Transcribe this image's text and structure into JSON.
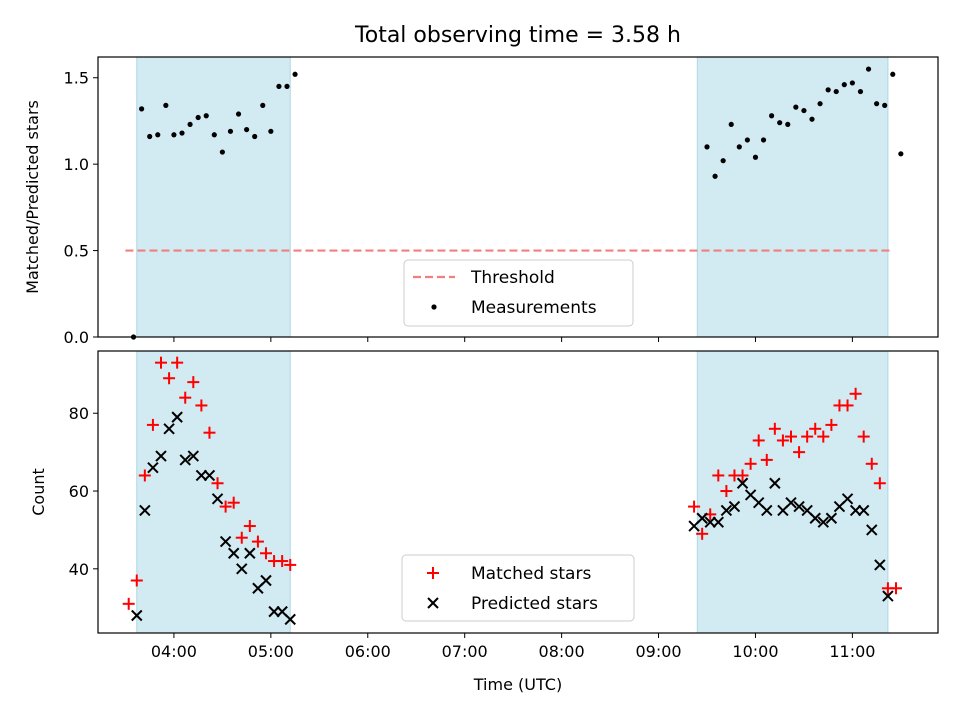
{
  "chart_data": [
    {
      "type": "scatter",
      "title": "Total observing time = 3.58 h",
      "xlabel": "",
      "ylabel": "Matched/Predicted stars",
      "xlim": [
        "03:13",
        "11:53"
      ],
      "ylim": [
        0,
        1.62
      ],
      "yticks": [
        "0.0",
        "0.5",
        "1.0",
        "1.5"
      ],
      "shaded_intervals": [
        [
          "03:37",
          "05:12"
        ],
        [
          "09:24",
          "11:22"
        ]
      ],
      "shade_color": "#add8e6",
      "threshold": {
        "label": "Threshold",
        "value": 0.5,
        "x_range": [
          "03:30",
          "11:24"
        ],
        "color": "#f08080"
      },
      "legend": {
        "placement": "bottom-center",
        "entries": [
          "Threshold",
          "Measurements"
        ]
      },
      "series": [
        {
          "name": "Measurements",
          "marker": "dot",
          "color": "#000000",
          "x": [
            "03:35",
            "03:40",
            "03:45",
            "03:50",
            "03:55",
            "04:00",
            "04:05",
            "04:10",
            "04:15",
            "04:20",
            "04:25",
            "04:30",
            "04:35",
            "04:40",
            "04:45",
            "04:50",
            "04:55",
            "05:00",
            "05:05",
            "05:10",
            "05:15",
            "09:30",
            "09:35",
            "09:40",
            "09:45",
            "09:50",
            "09:55",
            "10:00",
            "10:05",
            "10:10",
            "10:15",
            "10:20",
            "10:25",
            "10:30",
            "10:35",
            "10:40",
            "10:45",
            "10:50",
            "10:55",
            "11:00",
            "11:05",
            "11:10",
            "11:15",
            "11:20",
            "11:25",
            "11:30"
          ],
          "y": [
            0.0,
            1.32,
            1.16,
            1.17,
            1.34,
            1.17,
            1.18,
            1.23,
            1.27,
            1.28,
            1.17,
            1.07,
            1.19,
            1.29,
            1.2,
            1.16,
            1.34,
            1.19,
            1.45,
            1.45,
            1.52,
            1.1,
            0.93,
            1.02,
            1.23,
            1.1,
            1.14,
            1.04,
            1.14,
            1.28,
            1.24,
            1.23,
            1.33,
            1.31,
            1.26,
            1.35,
            1.43,
            1.42,
            1.46,
            1.47,
            1.42,
            1.55,
            1.35,
            1.34,
            1.52,
            1.06
          ]
        }
      ]
    },
    {
      "type": "scatter",
      "title": "",
      "xlabel": "Time (UTC)",
      "ylabel": "Count",
      "xlim": [
        "03:13",
        "11:53"
      ],
      "ylim": [
        23.5,
        96
      ],
      "xticks": [
        "04:00",
        "05:00",
        "06:00",
        "07:00",
        "08:00",
        "09:00",
        "10:00",
        "11:00"
      ],
      "yticks": [
        "40",
        "60",
        "80"
      ],
      "shaded_intervals": [
        [
          "03:37",
          "05:12"
        ],
        [
          "09:24",
          "11:22"
        ]
      ],
      "shade_color": "#add8e6",
      "legend": {
        "placement": "bottom-center",
        "entries": [
          "Matched stars",
          "Predicted stars"
        ]
      },
      "series": [
        {
          "name": "Matched stars",
          "marker": "plus",
          "color": "#ff0000",
          "x": [
            "03:32",
            "03:37",
            "03:42",
            "03:47",
            "03:52",
            "03:57",
            "04:02",
            "04:07",
            "04:12",
            "04:17",
            "04:22",
            "04:27",
            "04:32",
            "04:37",
            "04:42",
            "04:47",
            "04:52",
            "04:57",
            "05:02",
            "05:07",
            "05:12",
            "09:22",
            "09:27",
            "09:32",
            "09:37",
            "09:42",
            "09:47",
            "09:52",
            "09:57",
            "10:02",
            "10:07",
            "10:12",
            "10:17",
            "10:22",
            "10:27",
            "10:32",
            "10:37",
            "10:42",
            "10:47",
            "10:52",
            "10:57",
            "11:02",
            "11:07",
            "11:12",
            "11:17",
            "11:22",
            "11:27"
          ],
          "y": [
            31,
            37,
            64,
            77,
            93,
            89,
            93,
            84,
            88,
            82,
            75,
            62,
            56,
            57,
            48,
            51,
            47,
            44,
            42,
            42,
            41,
            56,
            49,
            54,
            64,
            60,
            64,
            64,
            67,
            73,
            68,
            76,
            73,
            74,
            70,
            74,
            76,
            74,
            77,
            82,
            82,
            85,
            74,
            67,
            62,
            35,
            35
          ]
        },
        {
          "name": "Predicted stars",
          "marker": "x",
          "color": "#000000",
          "x": [
            "03:37",
            "03:42",
            "03:47",
            "03:52",
            "03:57",
            "04:02",
            "04:07",
            "04:12",
            "04:17",
            "04:22",
            "04:27",
            "04:32",
            "04:37",
            "04:42",
            "04:47",
            "04:52",
            "04:57",
            "05:02",
            "05:07",
            "05:12",
            "09:22",
            "09:27",
            "09:32",
            "09:37",
            "09:42",
            "09:47",
            "09:52",
            "09:57",
            "10:02",
            "10:07",
            "10:12",
            "10:17",
            "10:22",
            "10:27",
            "10:32",
            "10:37",
            "10:42",
            "10:47",
            "10:52",
            "10:57",
            "11:02",
            "11:07",
            "11:12",
            "11:17",
            "11:22"
          ],
          "y": [
            28,
            55,
            66,
            69,
            76,
            79,
            68,
            69,
            64,
            64,
            58,
            47,
            44,
            40,
            44,
            35,
            37,
            29,
            29,
            27,
            51,
            53,
            52,
            52,
            55,
            56,
            62,
            59,
            57,
            55,
            62,
            55,
            57,
            56,
            55,
            53,
            52,
            53,
            56,
            58,
            55,
            55,
            50,
            41,
            33
          ]
        }
      ]
    }
  ]
}
